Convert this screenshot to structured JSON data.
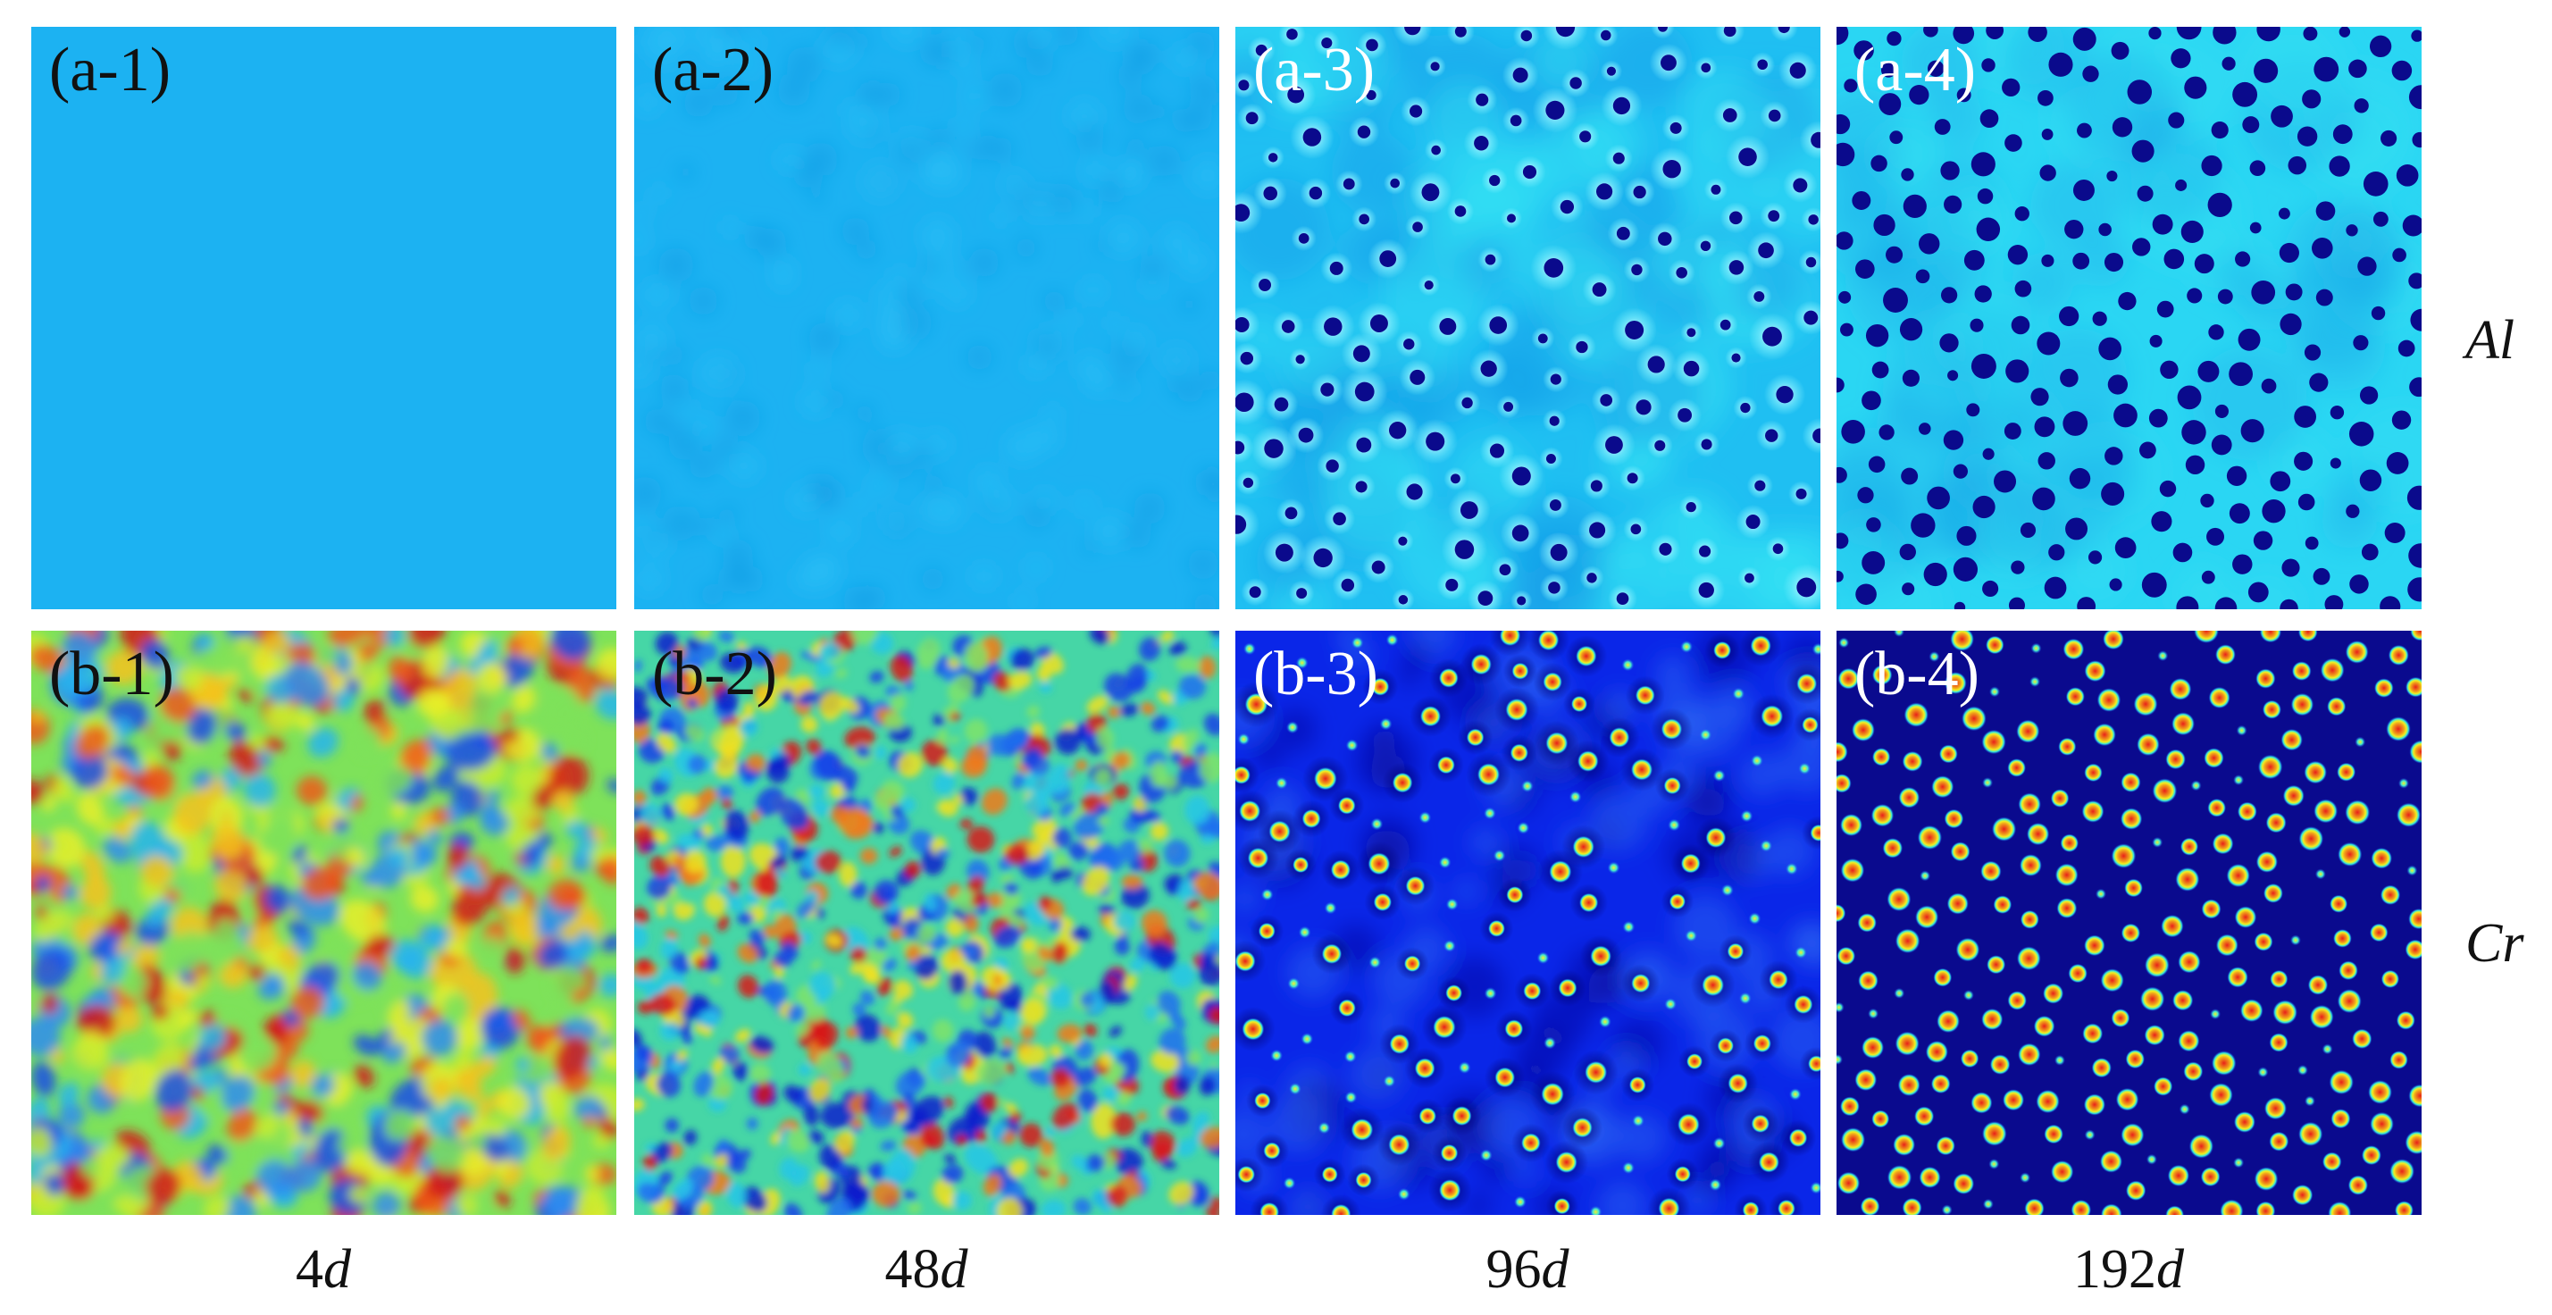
{
  "panels": [
    {
      "label": "(a-1)",
      "element": "Al",
      "time": "4d",
      "style": "al-uniform"
    },
    {
      "label": "(a-2)",
      "element": "Al",
      "time": "48d",
      "style": "al-faint"
    },
    {
      "label": "(a-3)",
      "element": "Al",
      "time": "96d",
      "style": "al-dots-medium"
    },
    {
      "label": "(a-4)",
      "element": "Al",
      "time": "192d",
      "style": "al-dots-strong"
    },
    {
      "label": "(b-1)",
      "element": "Cr",
      "time": "4d",
      "style": "cr-noise-coarse"
    },
    {
      "label": "(b-2)",
      "element": "Cr",
      "time": "48d",
      "style": "cr-noise-fine"
    },
    {
      "label": "(b-3)",
      "element": "Cr",
      "time": "96d",
      "style": "cr-dots-medium"
    },
    {
      "label": "(b-4)",
      "element": "Cr",
      "time": "192d",
      "style": "cr-dots-strong"
    }
  ],
  "row_labels": [
    "Al",
    "Cr"
  ],
  "col_labels": [
    {
      "number": "4",
      "unit": "d"
    },
    {
      "number": "48",
      "unit": "d"
    },
    {
      "number": "96",
      "unit": "d"
    },
    {
      "number": "192",
      "unit": "d"
    }
  ],
  "colors": {
    "al_base": "#1cb2f2",
    "al_bright": "#2fd9f5",
    "al_dot": "#0a0a8c",
    "cr_dark": "#00008f",
    "cr_blue": "#0a2cf0",
    "cr_red": "#e8201a",
    "cr_yellow": "#f2f020"
  }
}
